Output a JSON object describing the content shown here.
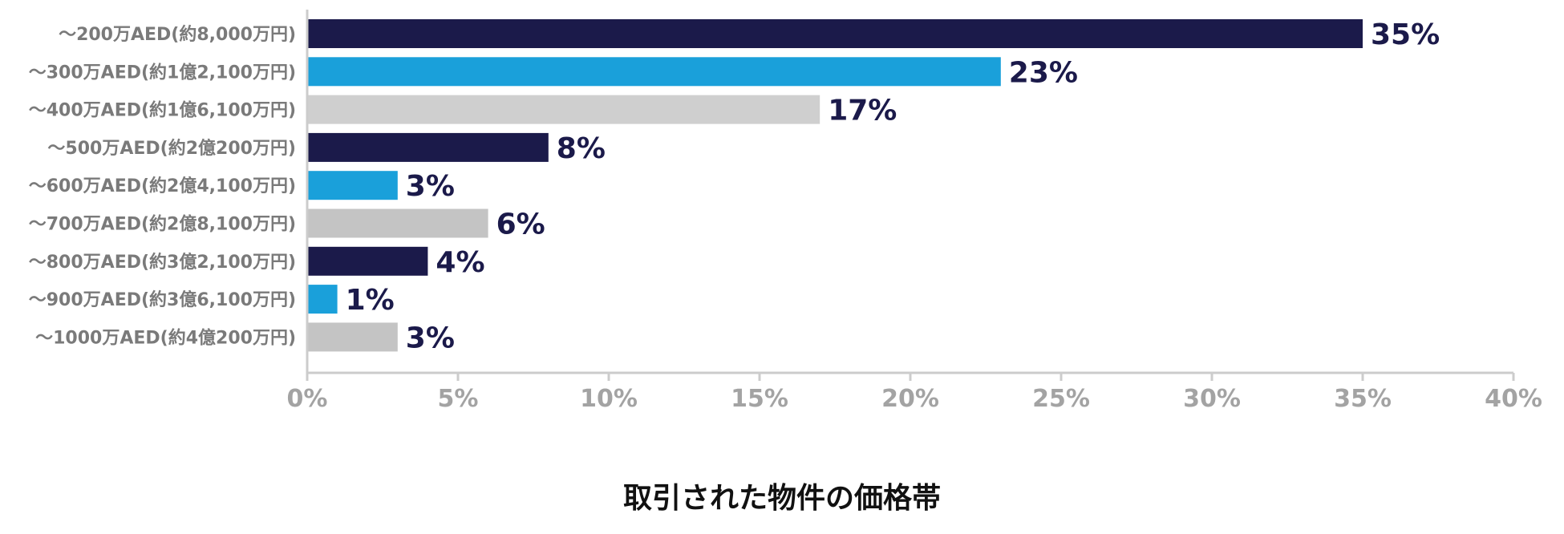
{
  "chart_data": {
    "type": "bar",
    "orientation": "horizontal",
    "title": "取引された物件の価格帯",
    "categories": [
      "〜200万AED(約8,000万円)",
      "〜300万AED(約1億2,100万円)",
      "〜400万AED(約1億6,100万円)",
      "〜500万AED(約2億200万円)",
      "〜600万AED(約2億4,100万円)",
      "〜700万AED(約2億8,100万円)",
      "〜800万AED(約3億2,100万円)",
      "〜900万AED(約3億6,100万円)",
      "〜1000万AED(約4億200万円)"
    ],
    "values": [
      35,
      23,
      17,
      8,
      3,
      6,
      4,
      1,
      3
    ],
    "value_labels": [
      "35%",
      "23%",
      "17%",
      "8%",
      "3%",
      "6%",
      "4%",
      "1%",
      "3%"
    ],
    "xlim": [
      0,
      40
    ],
    "x_ticks": [
      0,
      5,
      10,
      15,
      20,
      25,
      30,
      35,
      40
    ],
    "x_tick_labels": [
      "0%",
      "5%",
      "10%",
      "15%",
      "20%",
      "25%",
      "30%",
      "35%",
      "40%"
    ],
    "bar_colors": [
      "#1b1a4a",
      "#1aa0da",
      "#cfcfcf",
      "#1b1a4a",
      "#1aa0da",
      "#c4c4c4",
      "#1b1a4a",
      "#1aa0da",
      "#c4c4c4"
    ],
    "axis_color": "#cccccc",
    "grid": false,
    "legend": "none"
  }
}
